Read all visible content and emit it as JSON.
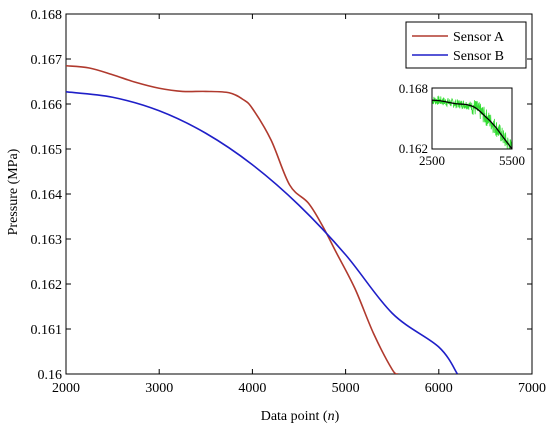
{
  "chart_data": {
    "type": "line",
    "xlabel_prefix": "Data point (",
    "xlabel_var": "n",
    "xlabel_suffix": ")",
    "ylabel": "Pressure (MPa)",
    "xlim": [
      2000,
      7000
    ],
    "ylim": [
      0.16,
      0.168
    ],
    "xticks": [
      2000,
      3000,
      4000,
      5000,
      6000,
      7000
    ],
    "xtick_labels": [
      "2000",
      "3000",
      "4000",
      "5000",
      "6000",
      "7000"
    ],
    "yticks": [
      0.16,
      0.161,
      0.162,
      0.163,
      0.164,
      0.165,
      0.166,
      0.167,
      0.168
    ],
    "ytick_labels": [
      "0.16",
      "0.161",
      "0.162",
      "0.163",
      "0.164",
      "0.165",
      "0.166",
      "0.167",
      "0.168"
    ],
    "grid": false,
    "legend_position": "top-right",
    "series": [
      {
        "name": "Sensor A",
        "color": "#b03a2e",
        "x": [
          2000,
          2250,
          2500,
          2750,
          3000,
          3250,
          3500,
          3750,
          3900,
          4000,
          4200,
          4400,
          4600,
          4750,
          4900,
          5100,
          5300,
          5500,
          5560
        ],
        "y": [
          0.16685,
          0.1668,
          0.16665,
          0.16648,
          0.16635,
          0.16628,
          0.16628,
          0.16625,
          0.1661,
          0.1659,
          0.1652,
          0.1642,
          0.1638,
          0.1633,
          0.1627,
          0.1619,
          0.1609,
          0.1601,
          0.16
        ]
      },
      {
        "name": "Sensor B",
        "color": "#1f1fc8",
        "x": [
          2000,
          2500,
          3000,
          3500,
          4000,
          4500,
          5000,
          5500,
          6000,
          6200
        ],
        "y": [
          0.16627,
          0.16615,
          0.16585,
          0.16535,
          0.16465,
          0.16375,
          0.16265,
          0.16135,
          0.1606,
          0.16
        ]
      }
    ],
    "inset": {
      "xlim": [
        2500,
        5500
      ],
      "ylim": [
        0.162,
        0.168
      ],
      "xtick_labels": [
        "2500",
        "5500"
      ],
      "ytick_labels": [
        "0.162",
        "0.168"
      ],
      "raw_color": "#33dd33",
      "fit_color": "#000000",
      "fit_x": [
        2500,
        2800,
        3100,
        3400,
        3700,
        3900,
        4100,
        4300,
        4500,
        4700,
        4900,
        5100,
        5300,
        5500
      ],
      "fit_y": [
        0.1668,
        0.16675,
        0.1666,
        0.16645,
        0.1664,
        0.1663,
        0.1661,
        0.1657,
        0.1652,
        0.1647,
        0.1641,
        0.1634,
        0.1627,
        0.162
      ]
    }
  }
}
